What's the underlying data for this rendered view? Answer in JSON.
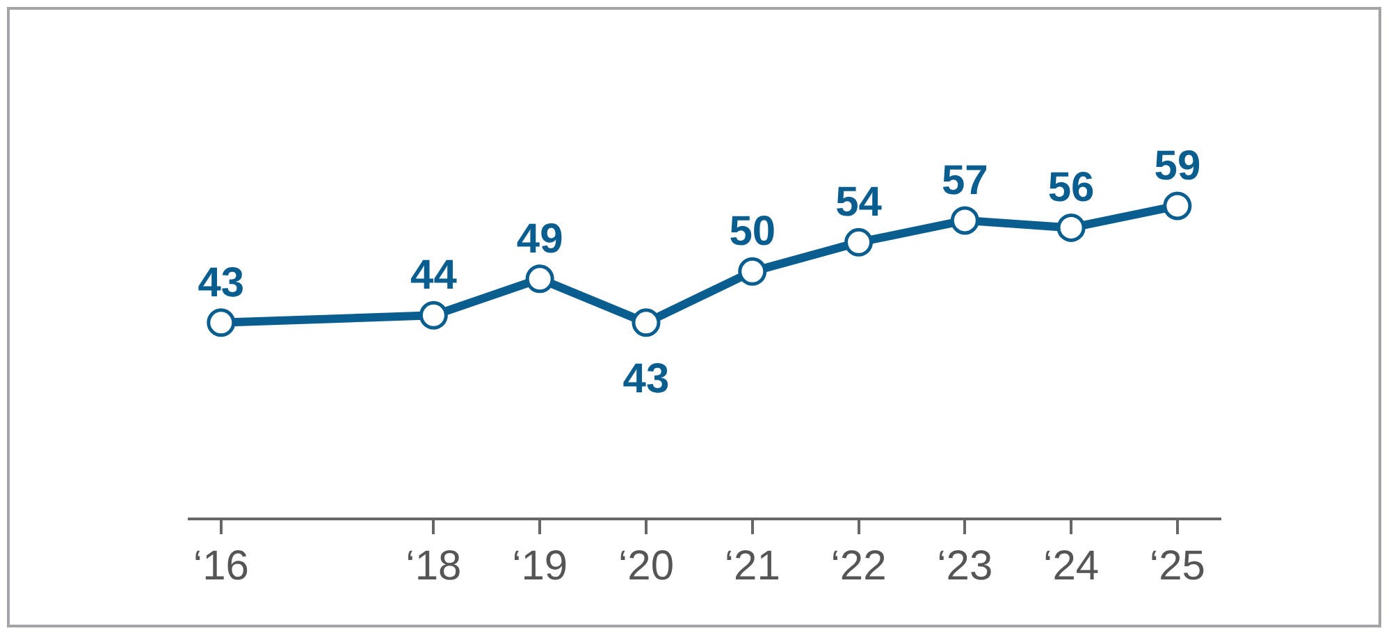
{
  "chart_data": {
    "type": "line",
    "categories": [
      "‘16",
      null,
      "‘18",
      "‘19",
      "‘20",
      "‘21",
      "‘22",
      "‘23",
      "‘24",
      "‘25"
    ],
    "values": [
      43,
      null,
      44,
      49,
      43,
      50,
      54,
      57,
      56,
      59
    ],
    "color": "#0a5e8f",
    "tick_labels": "x",
    "marker": "circle",
    "data_labels": true
  }
}
